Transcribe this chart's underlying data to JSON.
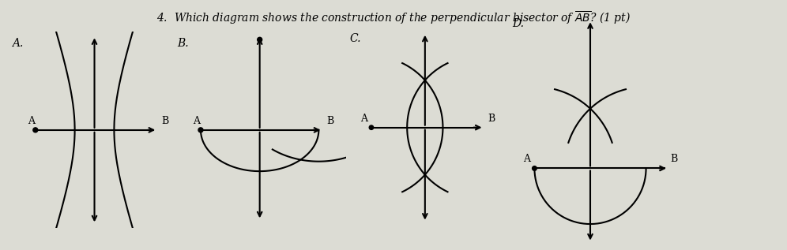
{
  "background_color": "#dcdcd4",
  "diagrams": [
    "A",
    "B",
    "C",
    "D"
  ]
}
